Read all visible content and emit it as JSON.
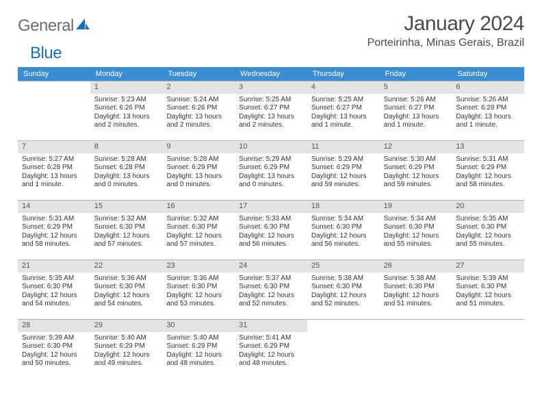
{
  "logo": {
    "text1": "General",
    "text2": "Blue"
  },
  "title": "January 2024",
  "location": "Porteirinha, Minas Gerais, Brazil",
  "colors": {
    "header_bg": "#3a8dd0",
    "header_text": "#ffffff",
    "daynum_bg": "#e3e3e3",
    "body_text": "#333333",
    "rule": "#a8b6c2",
    "logo_gray": "#6e6e6e",
    "logo_blue": "#1a6fb5"
  },
  "dow": [
    "Sunday",
    "Monday",
    "Tuesday",
    "Wednesday",
    "Thursday",
    "Friday",
    "Saturday"
  ],
  "weeks": [
    [
      {
        "n": "",
        "sunrise": "",
        "sunset": "",
        "daylight": ""
      },
      {
        "n": "1",
        "sunrise": "Sunrise: 5:23 AM",
        "sunset": "Sunset: 6:26 PM",
        "daylight": "Daylight: 13 hours and 2 minutes."
      },
      {
        "n": "2",
        "sunrise": "Sunrise: 5:24 AM",
        "sunset": "Sunset: 6:26 PM",
        "daylight": "Daylight: 13 hours and 2 minutes."
      },
      {
        "n": "3",
        "sunrise": "Sunrise: 5:25 AM",
        "sunset": "Sunset: 6:27 PM",
        "daylight": "Daylight: 13 hours and 2 minutes."
      },
      {
        "n": "4",
        "sunrise": "Sunrise: 5:25 AM",
        "sunset": "Sunset: 6:27 PM",
        "daylight": "Daylight: 13 hours and 1 minute."
      },
      {
        "n": "5",
        "sunrise": "Sunrise: 5:26 AM",
        "sunset": "Sunset: 6:27 PM",
        "daylight": "Daylight: 13 hours and 1 minute."
      },
      {
        "n": "6",
        "sunrise": "Sunrise: 5:26 AM",
        "sunset": "Sunset: 6:28 PM",
        "daylight": "Daylight: 13 hours and 1 minute."
      }
    ],
    [
      {
        "n": "7",
        "sunrise": "Sunrise: 5:27 AM",
        "sunset": "Sunset: 6:28 PM",
        "daylight": "Daylight: 13 hours and 1 minute."
      },
      {
        "n": "8",
        "sunrise": "Sunrise: 5:28 AM",
        "sunset": "Sunset: 6:28 PM",
        "daylight": "Daylight: 13 hours and 0 minutes."
      },
      {
        "n": "9",
        "sunrise": "Sunrise: 5:28 AM",
        "sunset": "Sunset: 6:29 PM",
        "daylight": "Daylight: 13 hours and 0 minutes."
      },
      {
        "n": "10",
        "sunrise": "Sunrise: 5:29 AM",
        "sunset": "Sunset: 6:29 PM",
        "daylight": "Daylight: 13 hours and 0 minutes."
      },
      {
        "n": "11",
        "sunrise": "Sunrise: 5:29 AM",
        "sunset": "Sunset: 6:29 PM",
        "daylight": "Daylight: 12 hours and 59 minutes."
      },
      {
        "n": "12",
        "sunrise": "Sunrise: 5:30 AM",
        "sunset": "Sunset: 6:29 PM",
        "daylight": "Daylight: 12 hours and 59 minutes."
      },
      {
        "n": "13",
        "sunrise": "Sunrise: 5:31 AM",
        "sunset": "Sunset: 6:29 PM",
        "daylight": "Daylight: 12 hours and 58 minutes."
      }
    ],
    [
      {
        "n": "14",
        "sunrise": "Sunrise: 5:31 AM",
        "sunset": "Sunset: 6:29 PM",
        "daylight": "Daylight: 12 hours and 58 minutes."
      },
      {
        "n": "15",
        "sunrise": "Sunrise: 5:32 AM",
        "sunset": "Sunset: 6:30 PM",
        "daylight": "Daylight: 12 hours and 57 minutes."
      },
      {
        "n": "16",
        "sunrise": "Sunrise: 5:32 AM",
        "sunset": "Sunset: 6:30 PM",
        "daylight": "Daylight: 12 hours and 57 minutes."
      },
      {
        "n": "17",
        "sunrise": "Sunrise: 5:33 AM",
        "sunset": "Sunset: 6:30 PM",
        "daylight": "Daylight: 12 hours and 56 minutes."
      },
      {
        "n": "18",
        "sunrise": "Sunrise: 5:34 AM",
        "sunset": "Sunset: 6:30 PM",
        "daylight": "Daylight: 12 hours and 56 minutes."
      },
      {
        "n": "19",
        "sunrise": "Sunrise: 5:34 AM",
        "sunset": "Sunset: 6:30 PM",
        "daylight": "Daylight: 12 hours and 55 minutes."
      },
      {
        "n": "20",
        "sunrise": "Sunrise: 5:35 AM",
        "sunset": "Sunset: 6:30 PM",
        "daylight": "Daylight: 12 hours and 55 minutes."
      }
    ],
    [
      {
        "n": "21",
        "sunrise": "Sunrise: 5:35 AM",
        "sunset": "Sunset: 6:30 PM",
        "daylight": "Daylight: 12 hours and 54 minutes."
      },
      {
        "n": "22",
        "sunrise": "Sunrise: 5:36 AM",
        "sunset": "Sunset: 6:30 PM",
        "daylight": "Daylight: 12 hours and 54 minutes."
      },
      {
        "n": "23",
        "sunrise": "Sunrise: 5:36 AM",
        "sunset": "Sunset: 6:30 PM",
        "daylight": "Daylight: 12 hours and 53 minutes."
      },
      {
        "n": "24",
        "sunrise": "Sunrise: 5:37 AM",
        "sunset": "Sunset: 6:30 PM",
        "daylight": "Daylight: 12 hours and 52 minutes."
      },
      {
        "n": "25",
        "sunrise": "Sunrise: 5:38 AM",
        "sunset": "Sunset: 6:30 PM",
        "daylight": "Daylight: 12 hours and 52 minutes."
      },
      {
        "n": "26",
        "sunrise": "Sunrise: 5:38 AM",
        "sunset": "Sunset: 6:30 PM",
        "daylight": "Daylight: 12 hours and 51 minutes."
      },
      {
        "n": "27",
        "sunrise": "Sunrise: 5:39 AM",
        "sunset": "Sunset: 6:30 PM",
        "daylight": "Daylight: 12 hours and 51 minutes."
      }
    ],
    [
      {
        "n": "28",
        "sunrise": "Sunrise: 5:39 AM",
        "sunset": "Sunset: 6:30 PM",
        "daylight": "Daylight: 12 hours and 50 minutes."
      },
      {
        "n": "29",
        "sunrise": "Sunrise: 5:40 AM",
        "sunset": "Sunset: 6:29 PM",
        "daylight": "Daylight: 12 hours and 49 minutes."
      },
      {
        "n": "30",
        "sunrise": "Sunrise: 5:40 AM",
        "sunset": "Sunset: 6:29 PM",
        "daylight": "Daylight: 12 hours and 48 minutes."
      },
      {
        "n": "31",
        "sunrise": "Sunrise: 5:41 AM",
        "sunset": "Sunset: 6:29 PM",
        "daylight": "Daylight: 12 hours and 48 minutes."
      },
      {
        "n": "",
        "sunrise": "",
        "sunset": "",
        "daylight": ""
      },
      {
        "n": "",
        "sunrise": "",
        "sunset": "",
        "daylight": ""
      },
      {
        "n": "",
        "sunrise": "",
        "sunset": "",
        "daylight": ""
      }
    ]
  ]
}
